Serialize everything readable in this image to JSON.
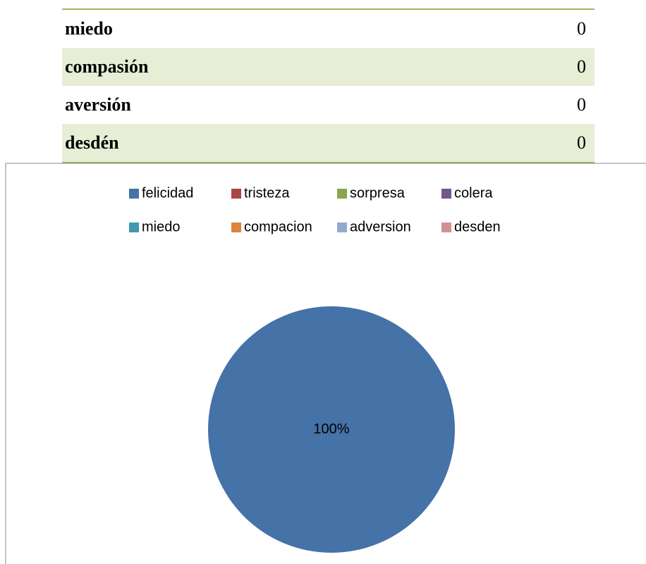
{
  "table": {
    "rows": [
      [
        "miedo",
        "0"
      ],
      [
        "compasión",
        "0"
      ],
      [
        "aversión",
        "0"
      ],
      [
        "desdén",
        "0"
      ]
    ]
  },
  "chart_data": {
    "type": "pie",
    "categories": [
      "felicidad",
      "tristeza",
      "sorpresa",
      "colera",
      "miedo",
      "compacion",
      "adversion",
      "desden"
    ],
    "values": [
      100,
      0,
      0,
      0,
      0,
      0,
      0,
      0
    ],
    "value_labels": [
      "100%",
      null,
      null,
      null,
      null,
      null,
      null,
      null
    ],
    "colors": [
      "#4572a7",
      "#aa4643",
      "#89a54e",
      "#71588f",
      "#4198af",
      "#db843d",
      "#93a9cf",
      "#d19392"
    ]
  }
}
